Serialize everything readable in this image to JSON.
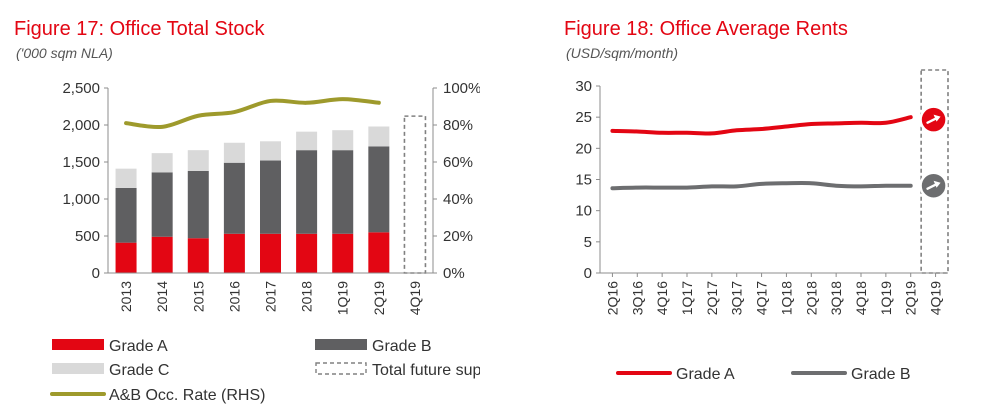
{
  "chart_data": [
    {
      "type": "bar",
      "title": "Figure 17: Office Total Stock",
      "subtitle": "('000 sqm NLA)",
      "categories": [
        "2013",
        "2014",
        "2015",
        "2016",
        "2017",
        "2018",
        "1Q19",
        "2Q19",
        "4Q19"
      ],
      "stacked": true,
      "ylim": [
        0,
        2500
      ],
      "yticks": [
        "0",
        "500",
        "1,000",
        "1,500",
        "2,000",
        "2,500"
      ],
      "y2lim": [
        0,
        100
      ],
      "y2ticks": [
        "0%",
        "20%",
        "40%",
        "60%",
        "80%",
        "100%"
      ],
      "series": [
        {
          "name": "Grade A",
          "type": "bar",
          "color": "#e30613",
          "values": [
            410,
            490,
            470,
            530,
            530,
            530,
            530,
            550,
            null
          ]
        },
        {
          "name": "Grade B",
          "type": "bar",
          "color": "#5f5f61",
          "values": [
            740,
            870,
            910,
            960,
            990,
            1130,
            1130,
            1160,
            null
          ]
        },
        {
          "name": "Grade C",
          "type": "bar",
          "color": "#d9d9d9",
          "values": [
            260,
            260,
            280,
            270,
            260,
            250,
            270,
            270,
            null
          ]
        },
        {
          "name": "Total future supply",
          "type": "bar",
          "style": "dashed-outline",
          "color": "#808080",
          "values": [
            null,
            null,
            null,
            null,
            null,
            null,
            null,
            null,
            2120
          ]
        },
        {
          "name": "A&B Occ. Rate (RHS)",
          "type": "line",
          "axis": "right",
          "color": "#9e9a2c",
          "values": [
            81,
            79,
            85,
            87,
            93,
            92,
            94,
            92,
            null
          ]
        }
      ],
      "legend": {
        "position": "bottom",
        "items": [
          {
            "label": "Grade A",
            "symbol": "bar",
            "color": "#e30613"
          },
          {
            "label": "Grade B",
            "symbol": "bar",
            "color": "#5f5f61"
          },
          {
            "label": "Grade C",
            "symbol": "bar",
            "color": "#d9d9d9"
          },
          {
            "label": "Total future supply",
            "symbol": "dashed-box",
            "color": "#808080"
          },
          {
            "label": "A&B Occ. Rate (RHS)",
            "symbol": "line",
            "color": "#9e9a2c"
          }
        ]
      }
    },
    {
      "type": "line",
      "title": "Figure 18: Office Average Rents",
      "subtitle": "(USD/sqm/month)",
      "categories": [
        "2Q16",
        "3Q16",
        "4Q16",
        "1Q17",
        "2Q17",
        "3Q17",
        "4Q17",
        "1Q18",
        "2Q18",
        "3Q18",
        "4Q18",
        "1Q19",
        "2Q19",
        "4Q19"
      ],
      "ylim": [
        0,
        30
      ],
      "yticks": [
        "0",
        "5",
        "10",
        "15",
        "20",
        "25",
        "30"
      ],
      "forecast_box": {
        "categories": [
          "4Q19"
        ],
        "style": "dashed-outline"
      },
      "series": [
        {
          "name": "Grade A",
          "color": "#e30613",
          "values": [
            22.8,
            22.7,
            22.5,
            22.5,
            22.4,
            22.9,
            23.1,
            23.5,
            23.9,
            24.0,
            24.1,
            24.1,
            25.0,
            null
          ],
          "forecast": {
            "value": 24.6,
            "marker": "circle-arrow",
            "direction": "stable"
          }
        },
        {
          "name": "Grade B",
          "color": "#6d6e70",
          "values": [
            13.6,
            13.7,
            13.7,
            13.7,
            13.9,
            13.9,
            14.3,
            14.4,
            14.4,
            14.0,
            13.9,
            14.0,
            14.0,
            null
          ],
          "forecast": {
            "value": 14.0,
            "marker": "circle-arrow",
            "direction": "stable"
          }
        }
      ],
      "legend": {
        "position": "bottom",
        "items": [
          {
            "label": "Grade A",
            "symbol": "line",
            "color": "#e30613"
          },
          {
            "label": "Grade B",
            "symbol": "line",
            "color": "#6d6e70"
          }
        ]
      }
    }
  ]
}
